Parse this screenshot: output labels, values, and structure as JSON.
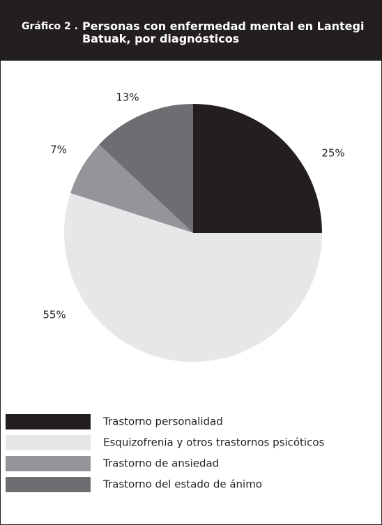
{
  "chart_data": {
    "type": "pie",
    "label": "Gráfico 2 .",
    "title": "Personas con enfermedad mental en Lantegi Batuak, por diagnósticos",
    "categories": [
      "Trastorno personalidad",
      "Esquizofrenia y otros trastornos psicóticos",
      "Trastorno de ansiedad",
      "Trastorno del estado de ánimo"
    ],
    "values": [
      25,
      55,
      7,
      13
    ],
    "value_labels": [
      "25%",
      "55%",
      "7%",
      "13%"
    ],
    "colors": [
      "#231f20",
      "#e6e7e8",
      "#939598",
      "#6d6e71"
    ]
  }
}
